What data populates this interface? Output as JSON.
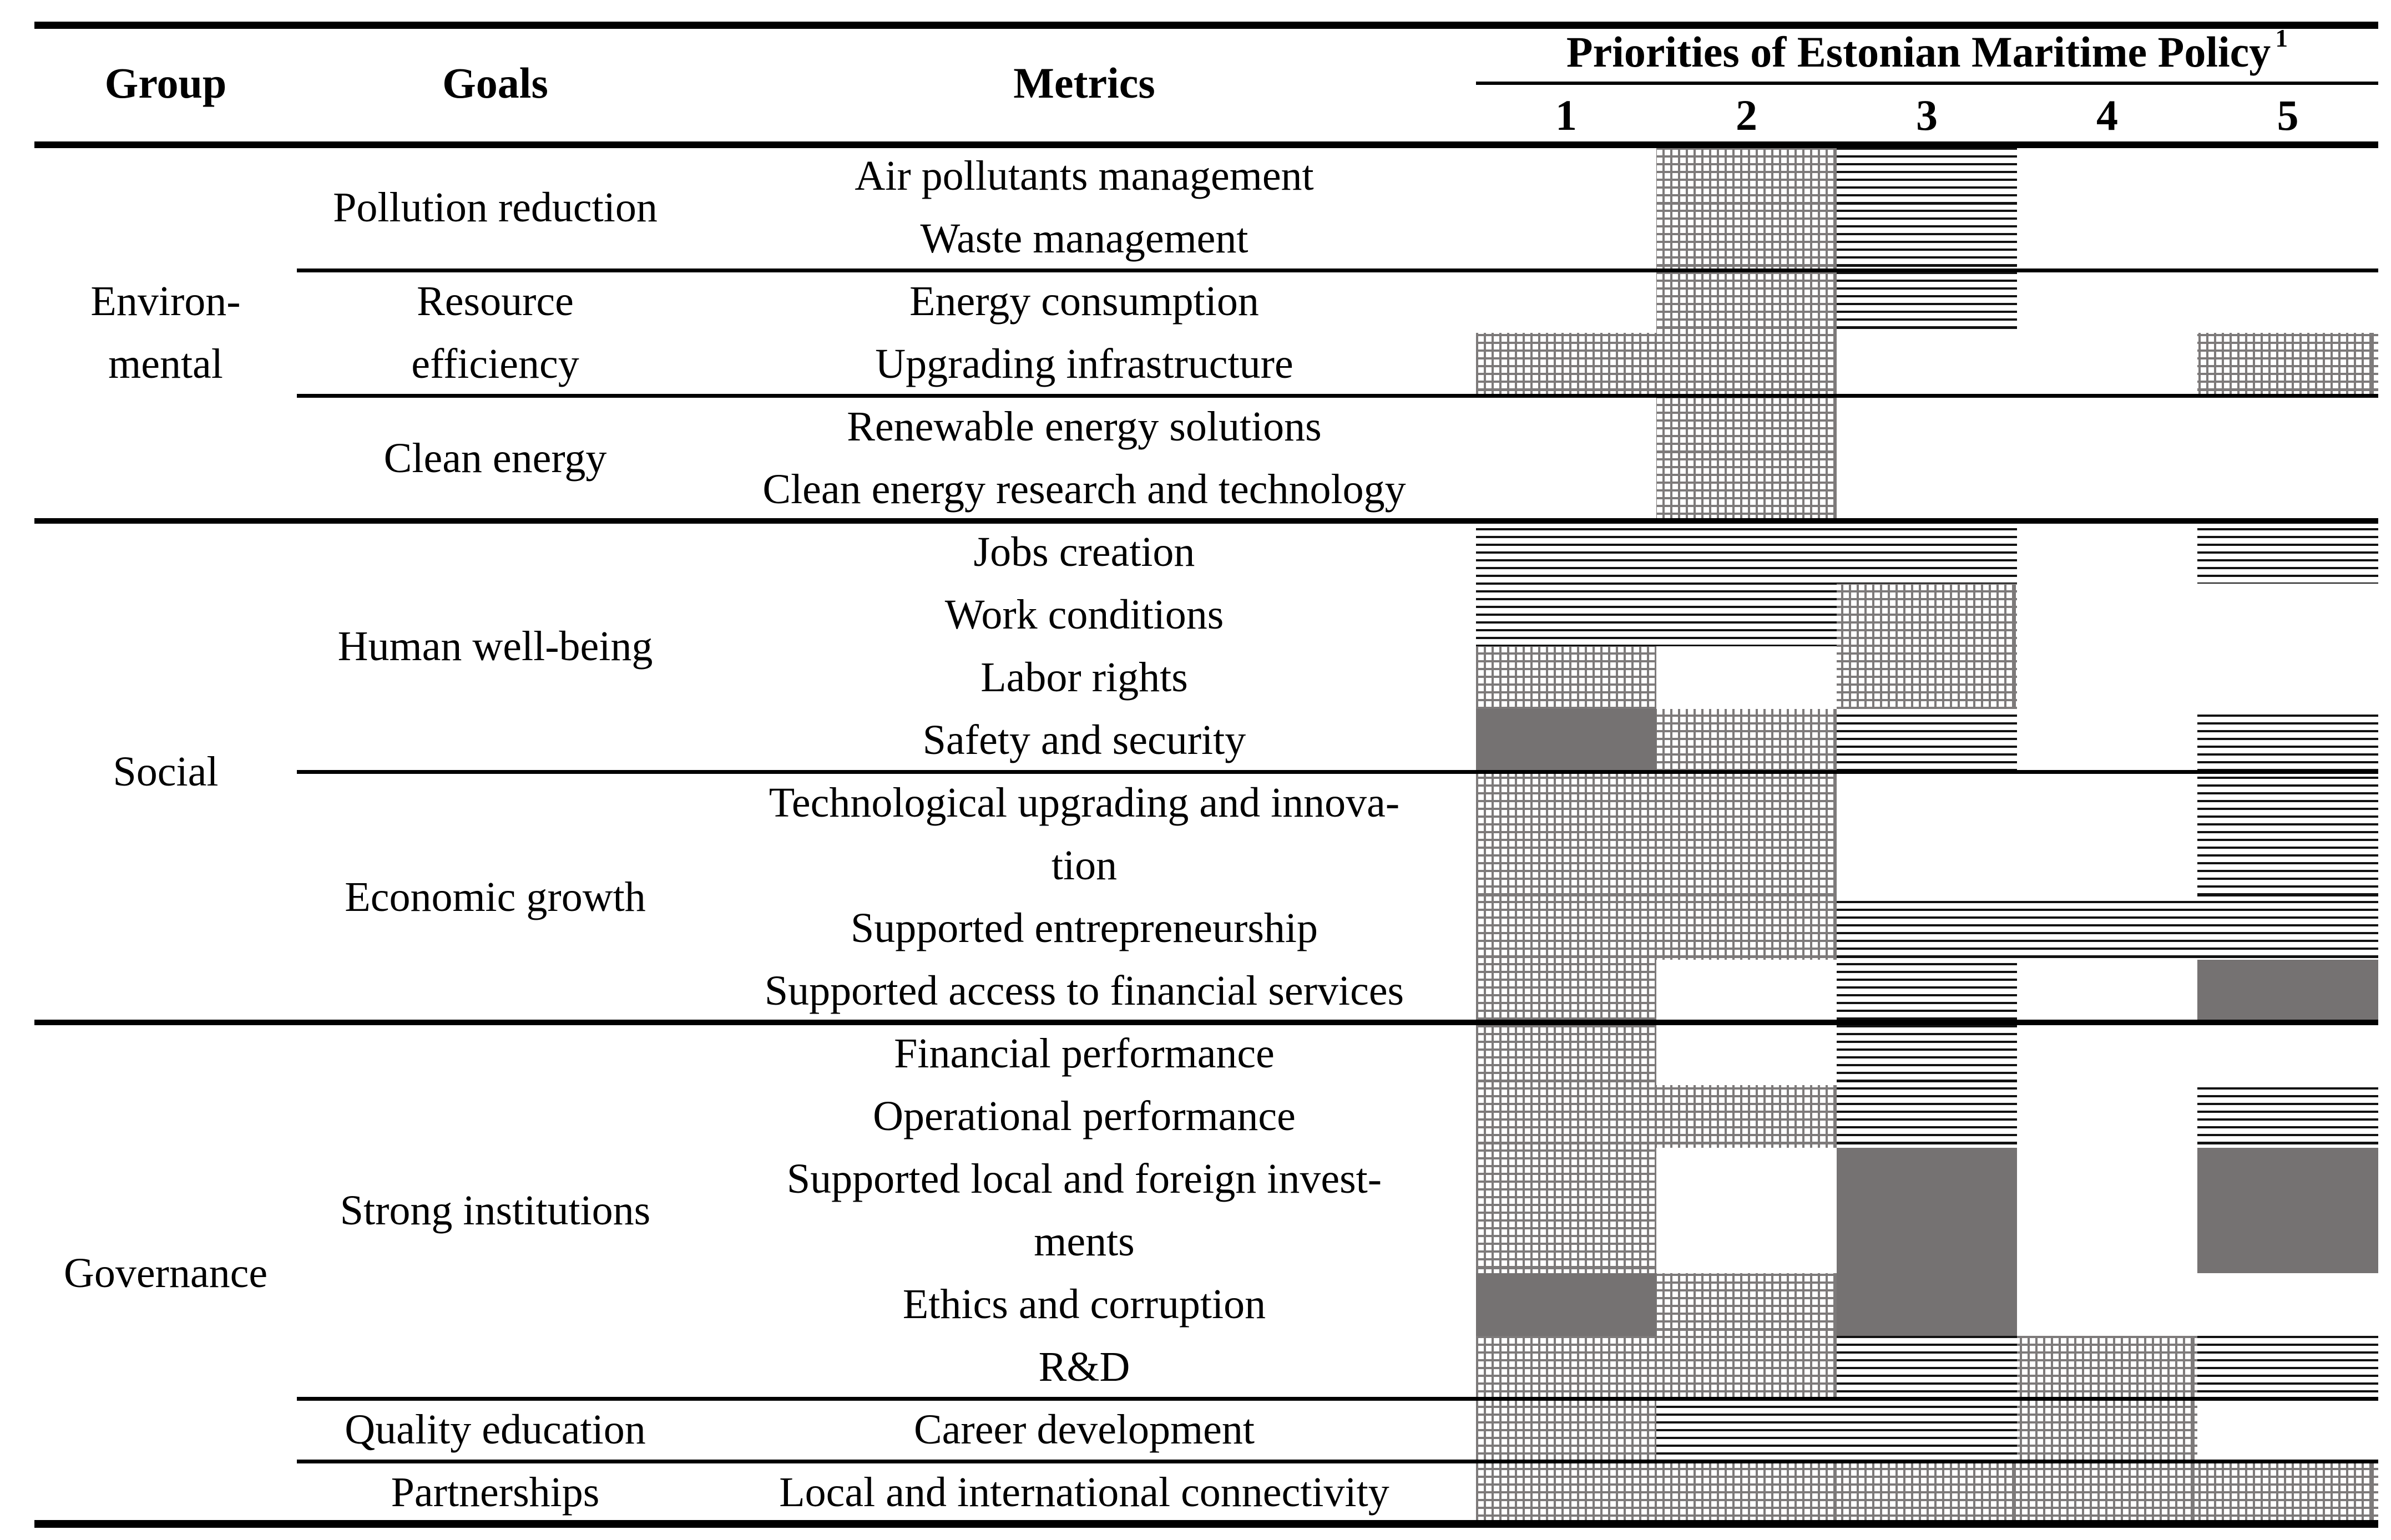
{
  "table": {
    "title": "Priorities of Estonian Maritime Policy",
    "title_superscript": "1",
    "col_headers": {
      "group": "Group",
      "goals": "Goals",
      "metrics": "Metrics"
    },
    "priority_levels": [
      "1",
      "2",
      "3",
      "4",
      "5"
    ],
    "pattern_legend": {
      "grid": "fine-gray-cross-hatch",
      "hlines": "black-horizontal-lines",
      "solid": "solid-gray-fill"
    },
    "colors": {
      "pattern_gray": "#7d7a7a",
      "solid_gray": "#757272",
      "hline_black": "#121212",
      "rule_black": "#000000",
      "text": "#000000",
      "background": "#ffffff"
    },
    "groups": [
      {
        "label_lines": [
          "Environ-",
          "mental"
        ],
        "goals": [
          {
            "label_lines": [
              "Pollution reduction"
            ],
            "metrics": [
              {
                "label_lines": [
                  "Air pollutants management"
                ],
                "priorities": {
                  "2": "grid",
                  "3": "hlines"
                }
              },
              {
                "label_lines": [
                  "Waste management"
                ],
                "priorities": {
                  "2": "grid",
                  "3": "hlines"
                }
              }
            ]
          },
          {
            "label_lines": [
              "Resource",
              "efficiency"
            ],
            "metrics": [
              {
                "label_lines": [
                  "Energy consumption"
                ],
                "priorities": {
                  "2": "grid",
                  "3": "hlines"
                }
              },
              {
                "label_lines": [
                  "Upgrading infrastructure"
                ],
                "priorities": {
                  "1": "grid",
                  "2": "grid",
                  "5": "grid"
                }
              }
            ]
          },
          {
            "label_lines": [
              "Clean energy"
            ],
            "metrics": [
              {
                "label_lines": [
                  "Renewable energy solutions"
                ],
                "priorities": {
                  "2": "grid"
                }
              },
              {
                "label_lines": [
                  "Clean energy research and technology"
                ],
                "priorities": {
                  "2": "grid"
                }
              }
            ]
          }
        ]
      },
      {
        "label_lines": [
          "Social"
        ],
        "goals": [
          {
            "label_lines": [
              "Human well-being"
            ],
            "metrics": [
              {
                "label_lines": [
                  "Jobs creation"
                ],
                "priorities": {
                  "1": "hlines",
                  "2": "hlines",
                  "3": "hlines",
                  "5": "hlines"
                }
              },
              {
                "label_lines": [
                  "Work conditions"
                ],
                "priorities": {
                  "1": "hlines",
                  "2": "hlines",
                  "3": "grid"
                }
              },
              {
                "label_lines": [
                  "Labor rights"
                ],
                "priorities": {
                  "1": "grid",
                  "3": "grid"
                }
              },
              {
                "label_lines": [
                  "Safety and security"
                ],
                "priorities": {
                  "1": "solid",
                  "2": "grid",
                  "3": "hlines",
                  "5": "hlines"
                }
              }
            ]
          },
          {
            "label_lines": [
              "Economic growth"
            ],
            "metrics": [
              {
                "label_lines": [
                  "Technological upgrading and innova-",
                  "tion"
                ],
                "priorities": {
                  "1": "grid",
                  "2": "grid",
                  "5": "hlines"
                }
              },
              {
                "label_lines": [
                  "Supported entrepreneurship"
                ],
                "priorities": {
                  "1": "grid",
                  "2": "grid",
                  "3": "hlines",
                  "4": "hlines",
                  "5": "hlines"
                }
              },
              {
                "label_lines": [
                  "Supported access to financial services"
                ],
                "priorities": {
                  "1": "grid",
                  "3": "hlines",
                  "5": "solid"
                }
              }
            ]
          }
        ]
      },
      {
        "label_lines": [
          "Governance"
        ],
        "goals": [
          {
            "label_lines": [
              "Strong institutions"
            ],
            "metrics": [
              {
                "label_lines": [
                  "Financial performance"
                ],
                "priorities": {
                  "1": "grid",
                  "3": "hlines"
                }
              },
              {
                "label_lines": [
                  "Operational performance"
                ],
                "priorities": {
                  "1": "grid",
                  "2": "grid",
                  "3": "hlines",
                  "5": "hlines"
                }
              },
              {
                "label_lines": [
                  "Supported local and foreign invest-",
                  "ments"
                ],
                "priorities": {
                  "1": "grid",
                  "3": "solid",
                  "5": "solid"
                }
              },
              {
                "label_lines": [
                  "Ethics and corruption"
                ],
                "priorities": {
                  "1": "solid",
                  "2": "grid",
                  "3": "solid"
                }
              },
              {
                "label_lines": [
                  "R&D"
                ],
                "priorities": {
                  "1": "grid",
                  "2": "grid",
                  "3": "hlines",
                  "4": "grid",
                  "5": "hlines"
                }
              }
            ]
          },
          {
            "label_lines": [
              "Quality education"
            ],
            "metrics": [
              {
                "label_lines": [
                  "Career development"
                ],
                "priorities": {
                  "1": "grid",
                  "2": "hlines",
                  "3": "hlines",
                  "4": "grid"
                }
              }
            ]
          },
          {
            "label_lines": [
              "Partnerships"
            ],
            "metrics": [
              {
                "label_lines": [
                  "Local and international connectivity"
                ],
                "priorities": {
                  "1": "grid",
                  "2": "grid",
                  "3": "grid",
                  "4": "grid",
                  "5": "grid"
                }
              }
            ]
          }
        ]
      }
    ]
  }
}
